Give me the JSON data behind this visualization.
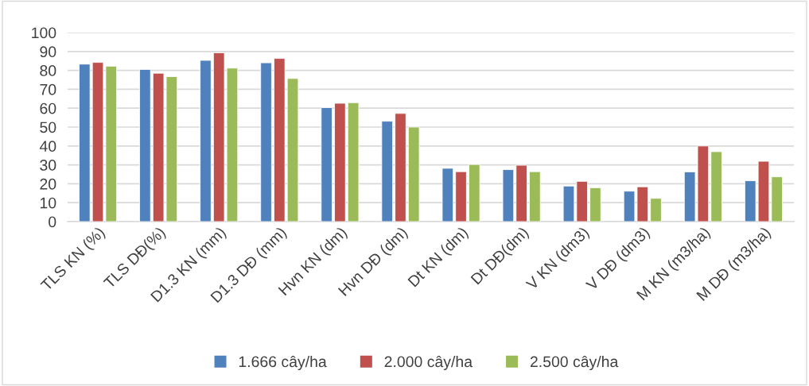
{
  "chart_data": {
    "type": "bar",
    "categories": [
      "TLS KN (%)",
      "TLS DĐ(%)",
      "D1.3 KN (mm)",
      "D1.3 DĐ (mm)",
      "Hvn KN (dm)",
      "Hvn DĐ (dm)",
      "Dt KN (dm)",
      "Dt DĐ(dm)",
      "V KN (dm3)",
      "V DĐ (dm3)",
      "M KN (m3/ha)",
      "M DĐ (m3/ha)"
    ],
    "series": [
      {
        "name": "1.666 cây/ha",
        "color": "#4f81bd",
        "values": [
          83.3,
          80.5,
          85.3,
          84.0,
          60.3,
          53.1,
          28.2,
          27.5,
          18.8,
          16.1,
          26.3,
          21.6
        ]
      },
      {
        "name": "2.000 cây/ha",
        "color": "#c0504d",
        "values": [
          84.2,
          78.5,
          89.3,
          86.3,
          62.6,
          57.2,
          26.4,
          29.8,
          21.3,
          18.4,
          40.0,
          31.9
        ]
      },
      {
        "name": "2.500 cây/ha",
        "color": "#9bbb59",
        "values": [
          82.2,
          76.7,
          81.2,
          75.7,
          62.9,
          50.0,
          30.2,
          26.4,
          17.9,
          12.3,
          37.0,
          23.7
        ]
      }
    ],
    "ylim": [
      0,
      100
    ],
    "yticks": [
      0,
      10,
      20,
      30,
      40,
      50,
      60,
      70,
      80,
      90,
      100
    ],
    "grid": "y",
    "legend": "bottom"
  }
}
